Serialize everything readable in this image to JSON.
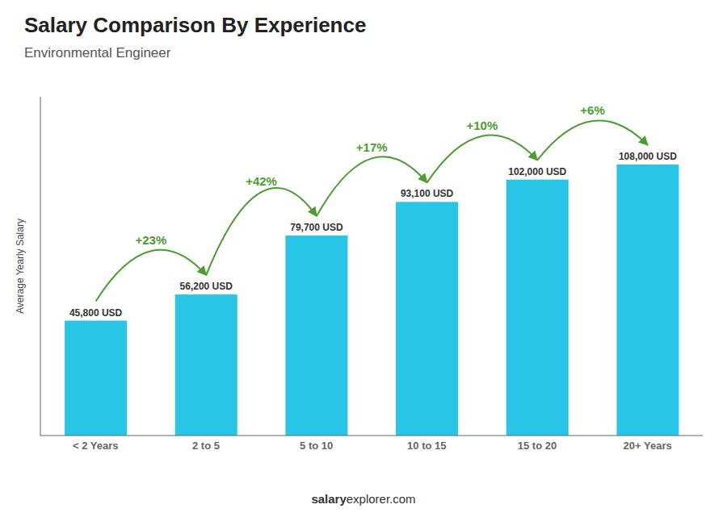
{
  "chart_data": {
    "type": "bar",
    "title": "Salary Comparison By Experience",
    "subtitle": "Environmental Engineer",
    "categories": [
      "< 2 Years",
      "2 to 5",
      "5 to 10",
      "10 to 15",
      "15 to 20",
      "20+ Years"
    ],
    "values": [
      45800,
      56200,
      79700,
      93100,
      102000,
      108000
    ],
    "value_labels": [
      "45,800 USD",
      "56,200 USD",
      "79,700 USD",
      "93,100 USD",
      "102,000 USD",
      "108,000 USD"
    ],
    "data_labels": true,
    "annotations": [
      "+23%",
      "+42%",
      "+17%",
      "+10%",
      "+6%"
    ],
    "color": "#29c5e6",
    "y_label": "Average Yearly Salary",
    "ylim": [
      0,
      135000
    ],
    "tick_labels": "x",
    "grid": false,
    "footer": [
      "salary",
      "explorer.com"
    ]
  }
}
